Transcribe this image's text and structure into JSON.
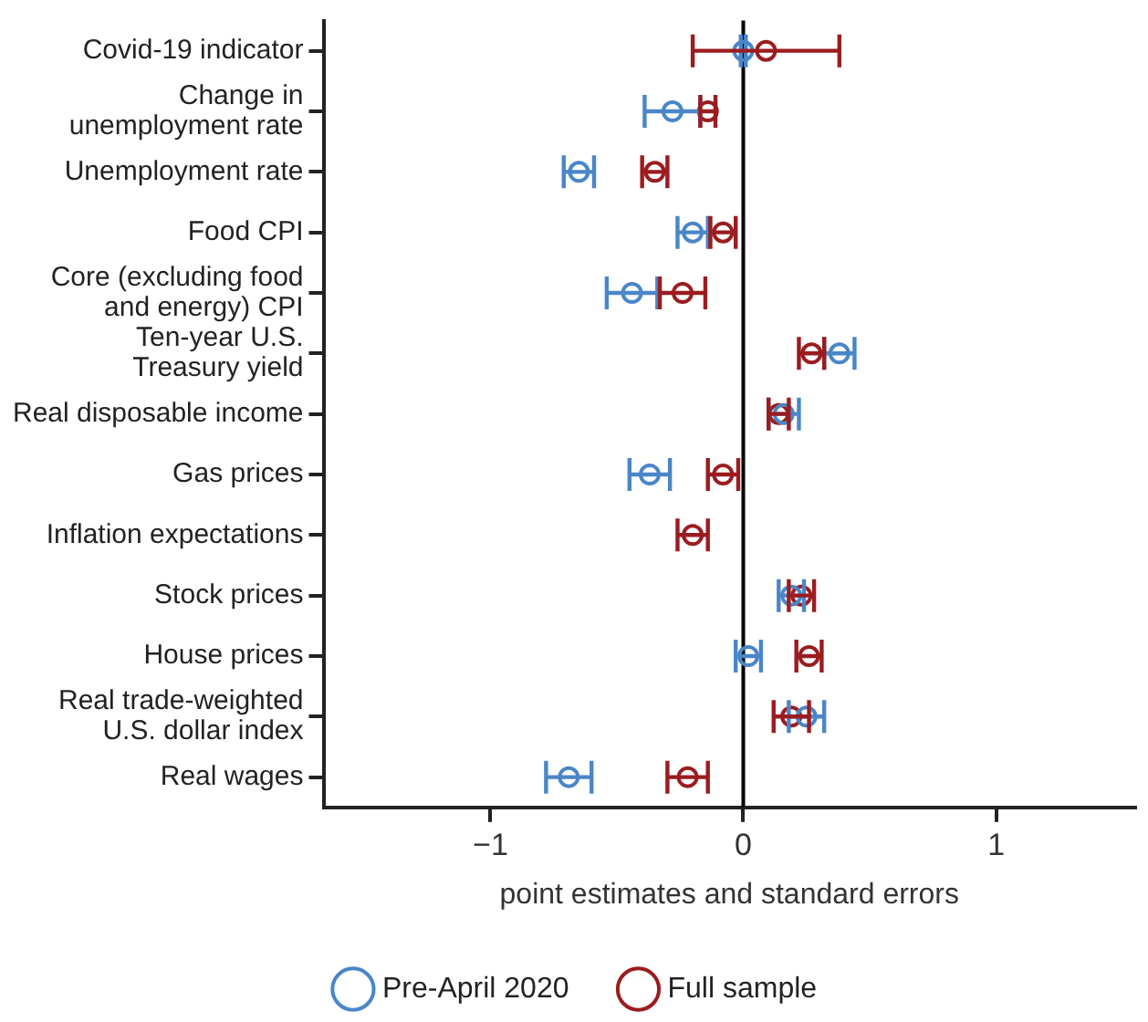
{
  "chart_data": {
    "type": "scatter",
    "xlabel": "point estimates and standard errors",
    "categories": [
      "Covid-19 indicator",
      "Change in unemployment rate",
      "Unemployment rate",
      "Food CPI",
      "Core (excluding food and energy) CPI",
      "Ten-year U.S. Treasury yield",
      "Real disposable income",
      "Gas prices",
      "Inflation expectations",
      "Stock prices",
      "House prices",
      "Real trade-weighted U.S. dollar index",
      "Real wages"
    ],
    "series": [
      {
        "name": "Pre-April 2020",
        "color": "#4a86c8",
        "values": [
          0,
          -0.28,
          -0.65,
          -0.2,
          -0.44,
          0.38,
          0.16,
          -0.37,
          null,
          0.19,
          0.02,
          0.25,
          -0.69
        ],
        "errors": [
          0.01,
          0.11,
          0.06,
          0.06,
          0.1,
          0.06,
          0.06,
          0.08,
          null,
          0.05,
          0.05,
          0.07,
          0.09
        ]
      },
      {
        "name": "Full sample",
        "color": "#9b1c1f",
        "values": [
          0.09,
          -0.14,
          -0.35,
          -0.08,
          -0.24,
          0.27,
          0.14,
          -0.08,
          -0.2,
          0.23,
          0.26,
          0.19,
          -0.22
        ],
        "errors": [
          0.29,
          0.03,
          0.05,
          0.05,
          0.09,
          0.05,
          0.04,
          0.06,
          0.06,
          0.05,
          0.05,
          0.07,
          0.08
        ]
      }
    ],
    "xlim": [
      -1.66,
      1.55
    ],
    "xticks": [
      {
        "value": -1,
        "label": "−1"
      },
      0,
      1
    ],
    "ref_lines": [
      {
        "axis": "x",
        "value": 0,
        "color": "#000000"
      }
    ],
    "orientation": "horizontal",
    "grid": false,
    "legend": "bottom",
    "marker": "circle"
  }
}
